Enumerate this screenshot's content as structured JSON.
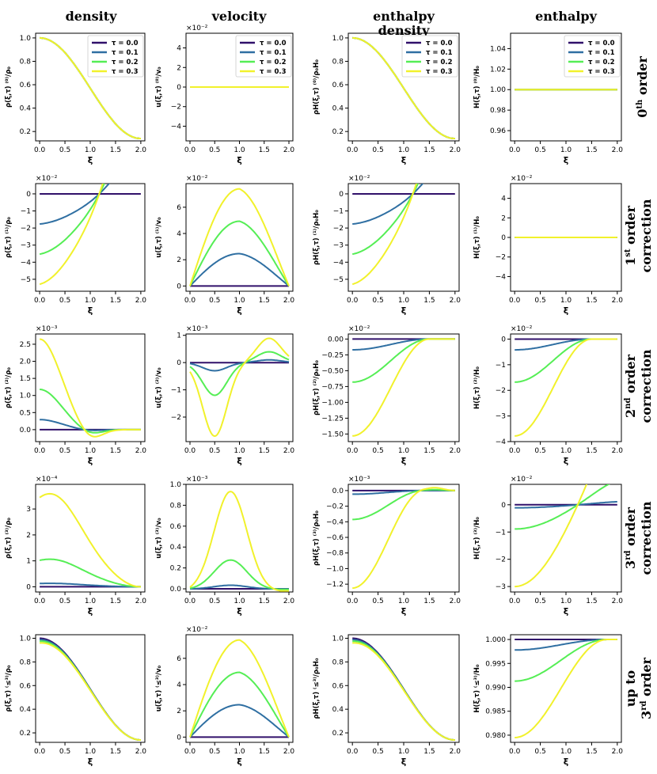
{
  "column_titles": [
    "density",
    "velocity",
    "enthalpy\ndensity",
    "enthalpy"
  ],
  "row_titles": [
    {
      "main": "0",
      "sup": "th",
      "rest": " order",
      "line2": ""
    },
    {
      "main": "1",
      "sup": "st",
      "rest": " order",
      "line2": "correction"
    },
    {
      "main": "2",
      "sup": "nd",
      "rest": " order",
      "line2": "correction"
    },
    {
      "main": "3",
      "sup": "rd",
      "rest": " order",
      "line2": "correction"
    },
    {
      "main": "up to",
      "sup": "",
      "rest": "",
      "line2": "3",
      "line2_sup": "rd",
      "line2_rest": " order"
    }
  ],
  "legend": {
    "labels": [
      "τ = 0.0",
      "τ = 0.1",
      "τ = 0.2",
      "τ = 0.3"
    ],
    "colors": [
      "#30106a",
      "#2f6fa2",
      "#55ee55",
      "#f1f12b"
    ]
  },
  "xlabel": "ξ",
  "chart_data": [
    [
      {
        "type": "line",
        "ylabel": "ρ(ξ,τ) ⁽⁰⁾/ρ₀",
        "mult": "",
        "kind": "den0",
        "yticks": [
          0.2,
          0.4,
          0.6,
          0.8,
          1.0
        ],
        "yticklabels": [
          "0.2",
          "0.4",
          "0.6",
          "0.8",
          "1.0"
        ],
        "ylim": [
          0.12,
          1.04
        ],
        "legend": true
      },
      {
        "type": "line",
        "ylabel": "u(ξ,τ) ⁽⁰⁾/v₀",
        "mult": "×10⁻²",
        "kind": "zero",
        "yticks": [
          -4,
          -2,
          0,
          2,
          4
        ],
        "yticklabels": [
          "−4",
          "−2",
          "0",
          "2",
          "4"
        ],
        "ylim": [
          -5.5,
          5.5
        ],
        "legend": true
      },
      {
        "type": "line",
        "ylabel": "ρH(ξ,τ) ⁽⁰⁾/ρ₀H₀",
        "mult": "",
        "kind": "den0",
        "yticks": [
          0.2,
          0.4,
          0.6,
          0.8,
          1.0
        ],
        "yticklabels": [
          "0.2",
          "0.4",
          "0.6",
          "0.8",
          "1.0"
        ],
        "ylim": [
          0.12,
          1.04
        ],
        "legend": true
      },
      {
        "type": "line",
        "ylabel": "H(ξ,τ) ⁽⁰⁾/H₀",
        "mult": "",
        "kind": "one",
        "yticks": [
          0.96,
          0.98,
          1.0,
          1.02,
          1.04
        ],
        "yticklabels": [
          "0.96",
          "0.98",
          "1.00",
          "1.02",
          "1.04"
        ],
        "ylim": [
          0.95,
          1.055
        ],
        "legend": true
      }
    ],
    [
      {
        "type": "line",
        "ylabel": "ρ(ξ,τ) ⁽¹⁾/ρ₀",
        "mult": "×10⁻²",
        "kind": "den1",
        "scale": 5.4,
        "yticks": [
          -5,
          -4,
          -3,
          -2,
          -1,
          0
        ],
        "yticklabels": [
          "−5",
          "−4",
          "−3",
          "−2",
          "−1",
          "0"
        ],
        "ylim": [
          -5.7,
          0.6
        ]
      },
      {
        "type": "line",
        "ylabel": "u(ξ,τ) ⁽¹⁾/v₀",
        "mult": "×10⁻²",
        "kind": "vel1",
        "scale": 7.4,
        "yticks": [
          0,
          2,
          4,
          6
        ],
        "yticklabels": [
          "0",
          "2",
          "4",
          "6"
        ],
        "ylim": [
          -0.4,
          7.8
        ]
      },
      {
        "type": "line",
        "ylabel": "ρH(ξ,τ) ⁽¹⁾/ρ₀H₀",
        "mult": "×10⁻²",
        "kind": "den1",
        "scale": 5.4,
        "yticks": [
          -5,
          -4,
          -3,
          -2,
          -1,
          0
        ],
        "yticklabels": [
          "−5",
          "−4",
          "−3",
          "−2",
          "−1",
          "0"
        ],
        "ylim": [
          -5.7,
          0.6
        ]
      },
      {
        "type": "line",
        "ylabel": "H(ξ,τ) ⁽¹⁾/H₀",
        "mult": "×10⁻²",
        "kind": "zero",
        "yticks": [
          -4,
          -2,
          0,
          2,
          4
        ],
        "yticklabels": [
          "−4",
          "−2",
          "0",
          "2",
          "4"
        ],
        "ylim": [
          -5.5,
          5.5
        ]
      }
    ],
    [
      {
        "type": "line",
        "ylabel": "ρ(ξ,τ) ⁽²⁾/ρ₀",
        "mult": "×10⁻³",
        "kind": "den2",
        "scale": 2.65,
        "yticks": [
          0,
          0.5,
          1.0,
          1.5,
          2.0,
          2.5
        ],
        "yticklabels": [
          "0.0",
          "0.5",
          "1.0",
          "1.5",
          "2.0",
          "2.5"
        ],
        "ylim": [
          -0.35,
          2.8
        ]
      },
      {
        "type": "line",
        "ylabel": "u(ξ,τ) ⁽²⁾/v₀",
        "mult": "×10⁻³",
        "kind": "vel2",
        "scale": 2.7,
        "yticks": [
          -2,
          -1,
          0,
          1
        ],
        "yticklabels": [
          "−2",
          "−1",
          "0",
          "1"
        ],
        "ylim": [
          -2.9,
          1.05
        ]
      },
      {
        "type": "line",
        "ylabel": "ρH(ξ,τ) ⁽²⁾/ρ₀H₀",
        "mult": "×10⁻²",
        "kind": "rh2",
        "scale": 1.53,
        "yticks": [
          -1.5,
          -1.25,
          -1.0,
          -0.75,
          -0.5,
          -0.25,
          0.0
        ],
        "yticklabels": [
          "−1.50",
          "−1.25",
          "−1.00",
          "−0.75",
          "−0.50",
          "−0.25",
          "0.00"
        ],
        "ylim": [
          -1.62,
          0.08
        ]
      },
      {
        "type": "line",
        "ylabel": "H(ξ,τ) ⁽²⁾/H₀",
        "mult": "×10⁻²",
        "kind": "rh2",
        "scale": 3.78,
        "yticks": [
          -4,
          -3,
          -2,
          -1,
          0
        ],
        "yticklabels": [
          "−4",
          "−3",
          "−2",
          "−1",
          "0"
        ],
        "ylim": [
          -4.0,
          0.2
        ]
      }
    ],
    [
      {
        "type": "line",
        "ylabel": "ρ(ξ,τ) ⁽³⁾/ρ₀",
        "mult": "×10⁻⁴",
        "kind": "den3",
        "scale": 3.7,
        "yticks": [
          0,
          1,
          2,
          3
        ],
        "yticklabels": [
          "0",
          "1",
          "2",
          "3"
        ],
        "ylim": [
          -0.2,
          3.95
        ]
      },
      {
        "type": "line",
        "ylabel": "u(ξ,τ) ⁽³⁾/v₀",
        "mult": "×10⁻³",
        "kind": "vel3",
        "scale": 0.96,
        "yticks": [
          0,
          0.2,
          0.4,
          0.6,
          0.8,
          1.0
        ],
        "yticklabels": [
          "0.0",
          "0.2",
          "0.4",
          "0.6",
          "0.8",
          "1.0"
        ],
        "ylim": [
          -0.03,
          1.0
        ]
      },
      {
        "type": "line",
        "ylabel": "ρH(ξ,τ) ⁽³⁾/ρ₀H₀",
        "mult": "×10⁻³",
        "kind": "rh3",
        "scale": 1.25,
        "yticks": [
          -1.2,
          -1.0,
          -0.8,
          -0.6,
          -0.4,
          -0.2,
          0.0
        ],
        "yticklabels": [
          "−1.2",
          "−1.0",
          "−0.8",
          "−0.6",
          "−0.4",
          "−0.2",
          "0.0"
        ],
        "ylim": [
          -1.3,
          0.08
        ]
      },
      {
        "type": "line",
        "ylabel": "H(ξ,τ) ⁽³⁾/H₀",
        "mult": "×10⁻²",
        "kind": "h3",
        "scale": 3.0,
        "yticks": [
          -3,
          -2,
          -1,
          0
        ],
        "yticklabels": [
          "−3",
          "−2",
          "−1",
          "0"
        ],
        "ylim": [
          -3.2,
          0.75
        ]
      }
    ],
    [
      {
        "type": "line",
        "ylabel": "ρ(ξ,τ) ⁽≤³⁾/ρ₀",
        "mult": "",
        "kind": "denT",
        "yticks": [
          0.2,
          0.4,
          0.6,
          0.8,
          1.0
        ],
        "yticklabels": [
          "0.2",
          "0.4",
          "0.6",
          "0.8",
          "1.0"
        ],
        "ylim": [
          0.12,
          1.03
        ]
      },
      {
        "type": "line",
        "ylabel": "u(ξ,τ) ⁽≤³⁾/v₀",
        "mult": "×10⁻²",
        "kind": "vel1",
        "scale": 7.4,
        "yticks": [
          0,
          2,
          4,
          6
        ],
        "yticklabels": [
          "0",
          "2",
          "4",
          "6"
        ],
        "ylim": [
          -0.4,
          7.8
        ]
      },
      {
        "type": "line",
        "ylabel": "ρH(ξ,τ) ⁽≤³⁾/ρ₀H₀",
        "mult": "",
        "kind": "denT",
        "yticks": [
          0.2,
          0.4,
          0.6,
          0.8,
          1.0
        ],
        "yticklabels": [
          "0.2",
          "0.4",
          "0.6",
          "0.8",
          "1.0"
        ],
        "ylim": [
          0.12,
          1.03
        ]
      },
      {
        "type": "line",
        "ylabel": "H(ξ,τ) ⁽≤³⁾/H₀",
        "mult": "",
        "kind": "hT",
        "yticks": [
          0.98,
          0.985,
          0.99,
          0.995,
          1.0
        ],
        "yticklabels": [
          "0.980",
          "0.985",
          "0.990",
          "0.995",
          "1.000"
        ],
        "ylim": [
          0.9785,
          1.001
        ]
      }
    ]
  ],
  "xticks": [
    0.0,
    0.5,
    1.0,
    1.5,
    2.0
  ],
  "xticklabels": [
    "0.0",
    "0.5",
    "1.0",
    "1.5",
    "2.0"
  ],
  "tau": [
    0.0,
    0.1,
    0.2,
    0.3
  ]
}
